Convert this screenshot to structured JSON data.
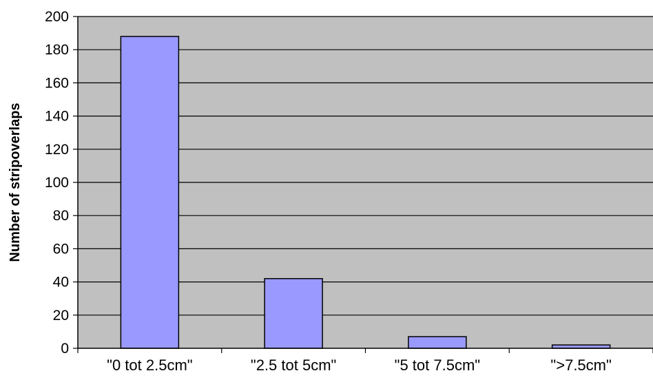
{
  "chart_data": {
    "type": "bar",
    "title": "",
    "xlabel": "",
    "ylabel": "Number of stripoverlaps",
    "categories": [
      "\"0 tot 2.5cm\"",
      "\"2.5 tot 5cm\"",
      "\"5 tot 7.5cm\"",
      "\">7.5cm\""
    ],
    "values": [
      188,
      42,
      7,
      2
    ],
    "ylim": [
      0,
      200
    ],
    "yticks": [
      0,
      20,
      40,
      60,
      80,
      100,
      120,
      140,
      160,
      180,
      200
    ],
    "grid": true,
    "legend": "none",
    "colors": {
      "bar_fill": "#9999ff",
      "bar_stroke": "#000000",
      "plot_background": "#c0c0c0",
      "gridline": "#000000",
      "axis": "#000000",
      "text": "#000000"
    }
  }
}
